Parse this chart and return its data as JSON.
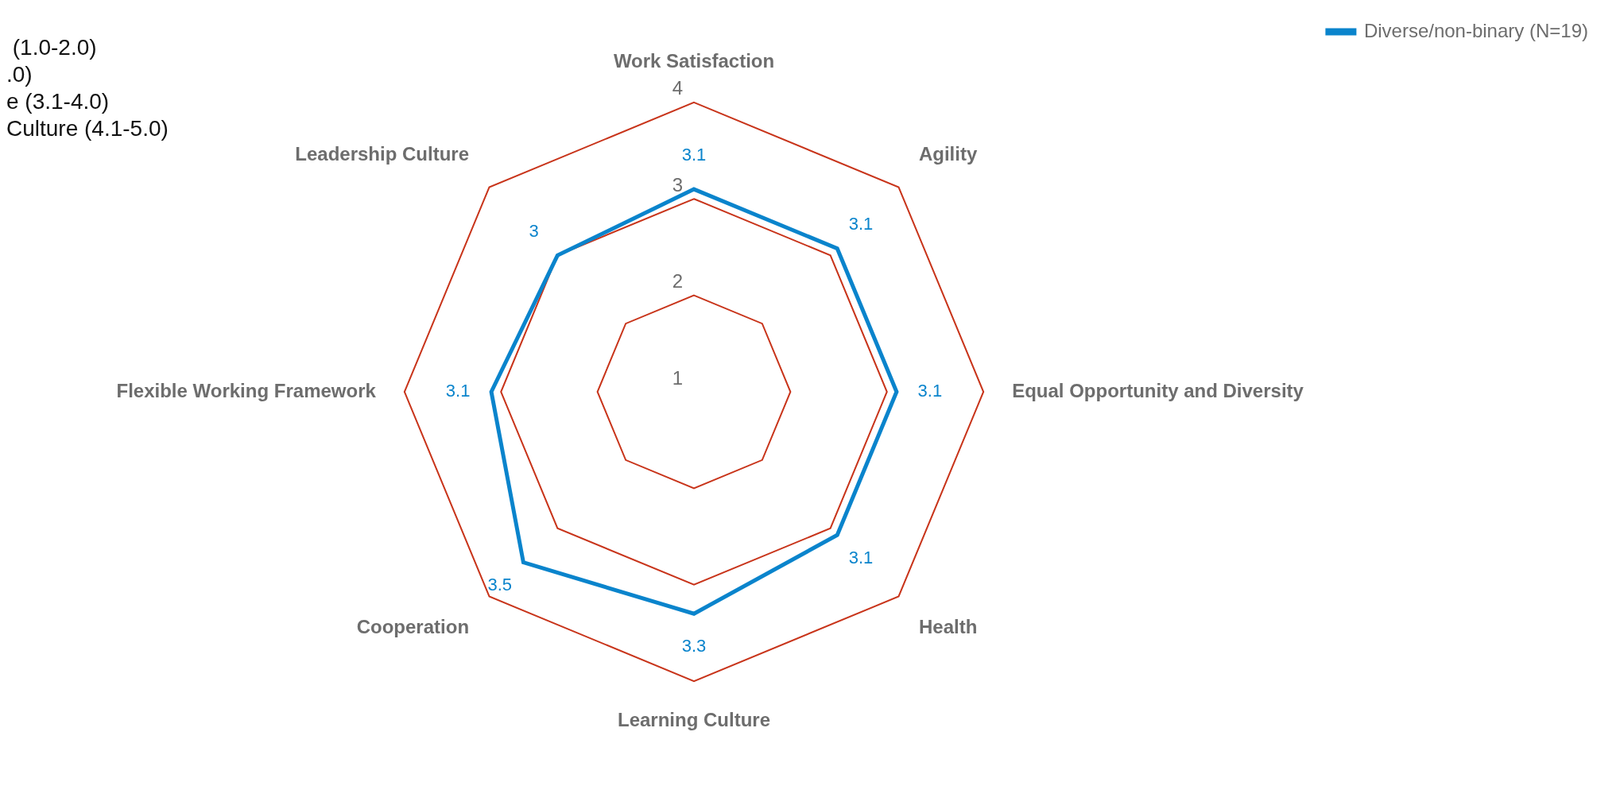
{
  "chart_data": {
    "type": "radar",
    "categories": [
      "Work Satisfaction",
      "Agility",
      "Equal Opportunity and Diversity",
      "Health",
      "Learning Culture",
      "Cooperation",
      "Flexible Working Framework",
      "Leadership Culture"
    ],
    "series": [
      {
        "name": "Diverse/non-binary (N=19)",
        "color": "#0a84cc",
        "values": [
          3.1,
          3.1,
          3.1,
          3.1,
          3.3,
          3.5,
          3.1,
          3
        ]
      }
    ],
    "ylim": [
      1,
      4
    ],
    "yticks": [
      1,
      2,
      3,
      4
    ],
    "grid": true,
    "legend": "right",
    "data_labels": true,
    "annotations": [
      " (1.0-2.0)",
      ".0)",
      "e (3.1-4.0)",
      "Culture (4.1-5.0)"
    ]
  }
}
